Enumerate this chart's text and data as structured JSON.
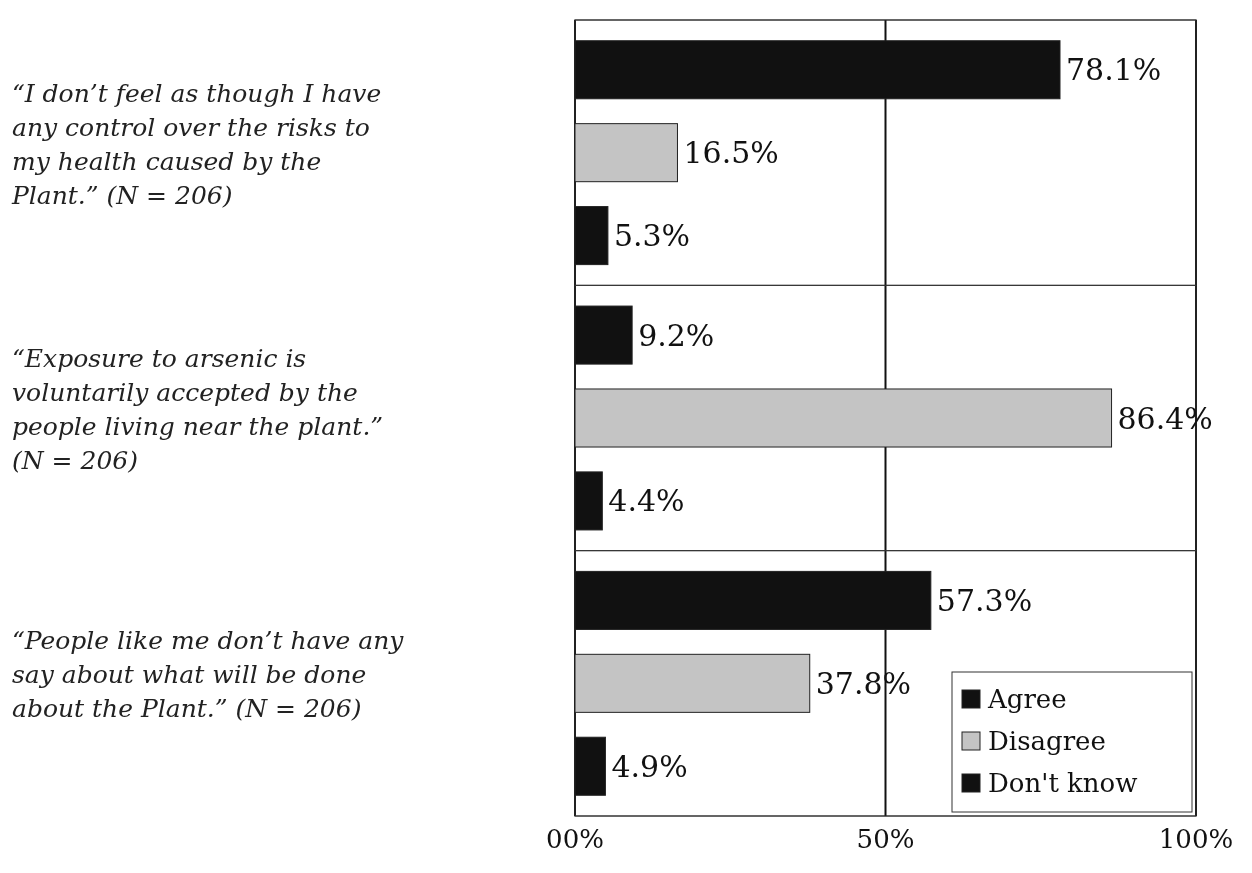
{
  "chart_data": {
    "type": "bar",
    "orientation": "horizontal",
    "categories": [
      "“I don’t feel as though I have any control over the risks to my health caused by the Plant.” (N = 206)",
      "“Exposure to arsenic is voluntarily accepted by the people living near the plant.” (N = 206)",
      "“People like me don’t have any say about what will be done about the Plant.” (N = 206)"
    ],
    "series": [
      {
        "name": "Agree",
        "color": "#111111",
        "values": [
          78.1,
          9.2,
          57.3
        ],
        "value_labels": [
          "78.1%",
          "9.2%",
          "57.3%"
        ]
      },
      {
        "name": "Disagree",
        "color": "#c4c4c4",
        "values": [
          16.5,
          86.4,
          37.8
        ],
        "value_labels": [
          "16.5%",
          "86.4%",
          "37.8%"
        ]
      },
      {
        "name": "Don't know",
        "color": "#111111",
        "values": [
          5.3,
          4.4,
          4.9
        ],
        "value_labels": [
          "5.3%",
          "4.4%",
          "4.9%"
        ]
      }
    ],
    "xlim": [
      0,
      100
    ],
    "xticks": [
      {
        "value": 0,
        "label": "00%"
      },
      {
        "value": 50,
        "label": "50%"
      },
      {
        "value": 100,
        "label": "100%"
      }
    ],
    "grid": "x",
    "legend": "bottom right"
  }
}
